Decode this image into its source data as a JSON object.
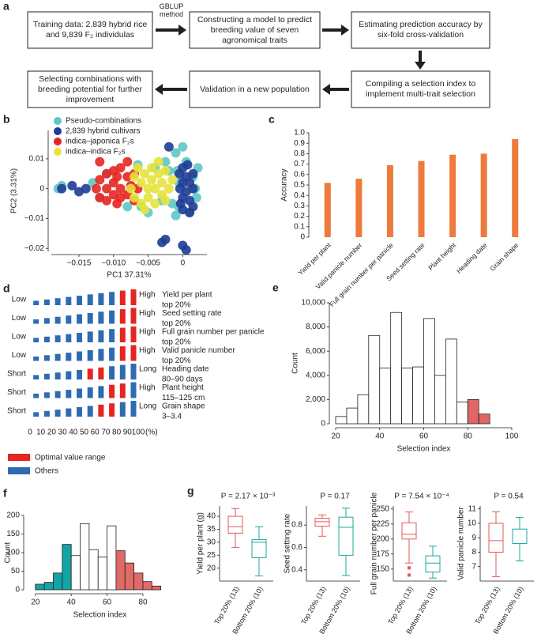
{
  "flowchart": {
    "panel": "a",
    "arrow_label": "GBLUP method",
    "boxes": [
      "Training data: 2,839 hybrid rice and 9,839 F₂ individulas",
      "Constructing a model to predict breeding value of seven agronomical traits",
      "Estimating prediction accuracy by six-fold cross-validation",
      "Compiling a selection index to implement multi-trait selection",
      "Validation in a new population",
      "Selecting combinations with breeding potential for further improvement"
    ]
  },
  "chart_data": [
    {
      "type": "scatter",
      "panel": "b",
      "xlabel": "PC1 37.31%",
      "ylabel": "PC2 (3.31%)",
      "xlim": [
        -0.019,
        0.0035
      ],
      "ylim": [
        -0.021,
        0.0195
      ],
      "xticks": [
        {
          "value": -0.015,
          "label": "−0.015"
        },
        {
          "value": -0.01,
          "label": "−0.010"
        },
        {
          "value": -0.005,
          "label": "−0.005"
        },
        0
      ],
      "yticks": [
        {
          "value": -0.02,
          "label": "−0.02"
        },
        {
          "value": -0.01,
          "label": "−0.01"
        },
        0,
        0.01
      ],
      "series": [
        {
          "name": "Pseudo-combinations",
          "color": "#5ec8c6",
          "x": [
            -0.018,
            -0.0175,
            -0.013,
            -0.012,
            -0.0065,
            -0.006,
            -0.005,
            -0.004,
            -0.003,
            -0.0025,
            -0.002,
            -0.0015,
            -0.001,
            -0.0008,
            -0.0006,
            -0.0005,
            0.0,
            0.0005,
            0.001,
            0.0015,
            0.002,
            0.0022,
            0.0018,
            -0.001,
            -0.008,
            -0.011
          ],
          "y": [
            0.0,
            0.001,
            0.002,
            -0.003,
            0.008,
            -0.006,
            -0.008,
            0.007,
            -0.004,
            0.009,
            0.006,
            -0.005,
            0.012,
            0.006,
            -0.006,
            0.002,
            0.014,
            0.009,
            -0.008,
            0.004,
            -0.003,
            0.007,
            0.0,
            -0.009,
            -0.006,
            0.005
          ]
        },
        {
          "name": "2,839 hybrid cultivars",
          "color": "#1f3c96",
          "x": [
            -0.0175,
            -0.016,
            -0.015,
            -0.014,
            -0.0005,
            -0.0004,
            -0.0003,
            0.0,
            0.0,
            0.0,
            0.0,
            0.0005,
            0.0005,
            0.0007,
            0.001,
            0.001,
            0.001,
            0.0015,
            0.0015,
            0.0015,
            -0.002,
            -0.003,
            0.0,
            0.0005,
            -0.0025
          ],
          "y": [
            0.0,
            0.001,
            -0.001,
            0.0,
            0.005,
            0.0,
            -0.005,
            0.007,
            0.002,
            -0.003,
            -0.007,
            0.004,
            -0.001,
            0.008,
            0.002,
            -0.004,
            -0.008,
            0.0,
            0.005,
            -0.006,
            0.014,
            -0.018,
            -0.019,
            -0.0205,
            -0.017
          ]
        },
        {
          "name": "indica–japonica F₂s",
          "color": "#e52521",
          "x": [
            -0.0125,
            -0.012,
            -0.012,
            -0.011,
            -0.011,
            -0.011,
            -0.01,
            -0.01,
            -0.01,
            -0.0095,
            -0.0095,
            -0.009,
            -0.009,
            -0.009,
            -0.008,
            -0.008,
            -0.0075,
            -0.007,
            -0.007,
            -0.0065,
            -0.012,
            -0.008
          ],
          "y": [
            0.0,
            0.003,
            -0.003,
            0.005,
            0.0,
            -0.004,
            0.006,
            0.002,
            -0.002,
            0.004,
            -0.005,
            0.007,
            0.0,
            -0.003,
            0.004,
            -0.002,
            0.001,
            -0.004,
            0.005,
            0.0,
            0.009,
            0.009
          ]
        },
        {
          "name": "indica–indica F₂s",
          "color": "#e6e33b",
          "x": [
            -0.0075,
            -0.007,
            -0.007,
            -0.0065,
            -0.006,
            -0.006,
            -0.0055,
            -0.005,
            -0.005,
            -0.0045,
            -0.0045,
            -0.004,
            -0.004,
            -0.0035,
            -0.003,
            -0.003,
            -0.0025,
            -0.0025,
            -0.002,
            -0.0015,
            -0.0055,
            -0.0035
          ],
          "y": [
            0.0,
            0.004,
            -0.003,
            0.007,
            0.002,
            -0.005,
            0.005,
            0.0,
            -0.003,
            0.007,
            0.003,
            -0.005,
            0.0,
            0.005,
            -0.002,
            0.002,
            0.006,
            -0.004,
            0.0,
            0.003,
            -0.007,
            0.009
          ]
        }
      ]
    },
    {
      "type": "bar",
      "panel": "c",
      "ylabel": "Accuracy",
      "color": "#ee7a3b",
      "categories": [
        "Yield per plant",
        "Valid panicle number",
        "Full grain number per panicle",
        "Seed setting rate",
        "Plant height",
        "Heading date",
        "Grain shape"
      ],
      "values": [
        0.52,
        0.56,
        0.69,
        0.73,
        0.79,
        0.8,
        0.94
      ],
      "ylim": [
        0,
        1
      ],
      "yticks": [
        0,
        0.1,
        0.2,
        0.3,
        0.4,
        0.5,
        0.6,
        0.7,
        0.8,
        0.9,
        {
          "value": 1,
          "label": "1.0"
        }
      ]
    },
    {
      "type": "ladder",
      "panel": "d",
      "xlabel": "(%)",
      "xticks": [
        0,
        10,
        20,
        30,
        40,
        50,
        60,
        70,
        80,
        90,
        100
      ],
      "rows": [
        {
          "low": "Low",
          "high": "High",
          "name": "Yield per plant",
          "range": "top 20%",
          "colors": [
            "#2e6cb2",
            "#2e6cb2",
            "#2e6cb2",
            "#2e6cb2",
            "#2e6cb2",
            "#2e6cb2",
            "#2e6cb2",
            "#2e6cb2",
            "#e52521",
            "#e52521"
          ]
        },
        {
          "low": "Low",
          "high": "High",
          "name": "Seed setting rate",
          "range": "top 20%",
          "colors": [
            "#2e6cb2",
            "#2e6cb2",
            "#2e6cb2",
            "#2e6cb2",
            "#2e6cb2",
            "#2e6cb2",
            "#2e6cb2",
            "#2e6cb2",
            "#e52521",
            "#e52521"
          ]
        },
        {
          "low": "Low",
          "high": "High",
          "name": "Full grain number per panicle",
          "range": "top 20%",
          "colors": [
            "#2e6cb2",
            "#2e6cb2",
            "#2e6cb2",
            "#2e6cb2",
            "#2e6cb2",
            "#2e6cb2",
            "#2e6cb2",
            "#2e6cb2",
            "#e52521",
            "#e52521"
          ]
        },
        {
          "low": "Low",
          "high": "High",
          "name": "Valid panicle number",
          "range": "top 20%",
          "colors": [
            "#2e6cb2",
            "#2e6cb2",
            "#2e6cb2",
            "#2e6cb2",
            "#2e6cb2",
            "#2e6cb2",
            "#2e6cb2",
            "#2e6cb2",
            "#e52521",
            "#e52521"
          ]
        },
        {
          "low": "Short",
          "high": "Long",
          "name": "Heading date",
          "range": "80–90 days",
          "colors": [
            "#2e6cb2",
            "#2e6cb2",
            "#2e6cb2",
            "#2e6cb2",
            "#2e6cb2",
            "#e52521",
            "#e52521",
            "#2e6cb2",
            "#2e6cb2",
            "#2e6cb2"
          ]
        },
        {
          "low": "Short",
          "high": "High",
          "name": "Plant height",
          "range": "115–125 cm",
          "colors": [
            "#2e6cb2",
            "#2e6cb2",
            "#2e6cb2",
            "#2e6cb2",
            "#2e6cb2",
            "#2e6cb2",
            "#2e6cb2",
            "#e52521",
            "#e52521",
            "#2e6cb2"
          ]
        },
        {
          "low": "Short",
          "high": "Long",
          "name": "Grain shape",
          "range": "3–3.4",
          "colors": [
            "#2e6cb2",
            "#2e6cb2",
            "#2e6cb2",
            "#2e6cb2",
            "#2e6cb2",
            "#2e6cb2",
            "#e52521",
            "#e52521",
            "#2e6cb2",
            "#2e6cb2"
          ]
        }
      ],
      "legend": [
        {
          "name": "Optimal value range",
          "color": "#e52521"
        },
        {
          "name": "Others",
          "color": "#2e6cb2"
        }
      ]
    },
    {
      "type": "histogram",
      "panel": "e",
      "xlabel": "Selection index",
      "ylabel": "Count",
      "bins": [
        20,
        25,
        30,
        35,
        40,
        45,
        50,
        55,
        60,
        65,
        70,
        75,
        80,
        85,
        90
      ],
      "values": [
        600,
        1300,
        2400,
        7300,
        4600,
        9200,
        4600,
        4700,
        8700,
        4000,
        7000,
        1800,
        2000,
        800
      ],
      "colors": [
        "#ffffff",
        "#ffffff",
        "#ffffff",
        "#ffffff",
        "#ffffff",
        "#ffffff",
        "#ffffff",
        "#ffffff",
        "#ffffff",
        "#ffffff",
        "#ffffff",
        "#ffffff",
        "#e06666",
        "#e06666"
      ],
      "xlim": [
        20,
        100
      ],
      "xticks": [
        20,
        40,
        60,
        80,
        100
      ],
      "ylim": [
        0,
        10000
      ],
      "yticks": [
        0,
        {
          "value": 2000,
          "label": "2,000"
        },
        {
          "value": 4000,
          "label": "4,000"
        },
        {
          "value": 6000,
          "label": "6,000"
        },
        {
          "value": 8000,
          "label": "8,000"
        },
        {
          "value": 10000,
          "label": "10,000"
        }
      ]
    },
    {
      "type": "histogram",
      "panel": "f",
      "xlabel": "Selection index",
      "ylabel": "Count",
      "bins": [
        20,
        25,
        30,
        35,
        40,
        45,
        50,
        55,
        60,
        65,
        70,
        75,
        80,
        85,
        90
      ],
      "values": [
        15,
        20,
        45,
        122,
        92,
        178,
        108,
        88,
        172,
        105,
        72,
        45,
        22,
        10
      ],
      "colors": [
        "#13a4a6",
        "#13a4a6",
        "#13a4a6",
        "#13a4a6",
        "#ffffff",
        "#ffffff",
        "#ffffff",
        "#ffffff",
        "#ffffff",
        "#e06a66",
        "#e06a66",
        "#e06a66",
        "#e06a66",
        "#e06a66"
      ],
      "xlim": [
        17,
        95
      ],
      "xticks": [
        20,
        40,
        60,
        80
      ],
      "ylim": [
        0,
        200
      ],
      "yticks": [
        0,
        50,
        100,
        150,
        200
      ]
    },
    {
      "type": "box",
      "panel": "g",
      "title": "P = 2.17 × 10⁻³",
      "ylabel": "Yield per plant (g)",
      "categories": [
        "Top 20% (13)",
        "Bottom 20% (10)"
      ],
      "boxes": [
        {
          "color": "#e05a5a",
          "min": 28,
          "q1": 33.5,
          "median": 36,
          "q3": 40,
          "max": 43
        },
        {
          "color": "#1fa89a",
          "min": 17,
          "q1": 24,
          "median": 30,
          "q3": 31,
          "max": 36
        }
      ],
      "ylim": [
        15,
        44
      ],
      "yticks": [
        20,
        25,
        30,
        35,
        40
      ]
    },
    {
      "type": "box",
      "title": "P = 0.17",
      "ylabel": "Seed setting rate",
      "categories": [
        "Top 20% (13)",
        "Bottom 20% (10)"
      ],
      "boxes": [
        {
          "color": "#e05a5a",
          "min": 0.7,
          "q1": 0.79,
          "median": 0.83,
          "q3": 0.86,
          "max": 0.89
        },
        {
          "color": "#1fa89a",
          "min": 0.35,
          "q1": 0.53,
          "median": 0.78,
          "q3": 0.87,
          "max": 0.95
        }
      ],
      "ylim": [
        0.3,
        0.97
      ],
      "yticks": [
        0.4,
        0.6,
        0.8
      ]
    },
    {
      "type": "box",
      "title": "P = 7.54 × 10⁻⁴",
      "ylabel": "Full grain number per panicle",
      "categories": [
        "Top 20% (13)",
        "Bottom 20% (10)"
      ],
      "boxes": [
        {
          "color": "#e05a5a",
          "min": 160,
          "q1": 200,
          "median": 208,
          "q3": 227,
          "max": 245,
          "outliers": [
            152,
            140
          ]
        },
        {
          "color": "#1fa89a",
          "min": 135,
          "q1": 145,
          "median": 160,
          "q3": 172,
          "max": 188
        }
      ],
      "ylim": [
        130,
        255
      ],
      "yticks": [
        150,
        175,
        200,
        225,
        250
      ]
    },
    {
      "type": "box",
      "title": "P = 0.54",
      "ylabel": "Valid panicle number",
      "categories": [
        "Top 20% (13)",
        "Bottom 20% (10)"
      ],
      "boxes": [
        {
          "color": "#e05a5a",
          "min": 6.3,
          "q1": 8,
          "median": 8.8,
          "q3": 10,
          "max": 10.8
        },
        {
          "color": "#1fa89a",
          "min": 7.4,
          "q1": 8.6,
          "median": 8.6,
          "q3": 9.6,
          "max": 10.4
        }
      ],
      "ylim": [
        6,
        11.2
      ],
      "yticks": [
        7,
        8,
        9,
        10,
        11
      ]
    }
  ]
}
